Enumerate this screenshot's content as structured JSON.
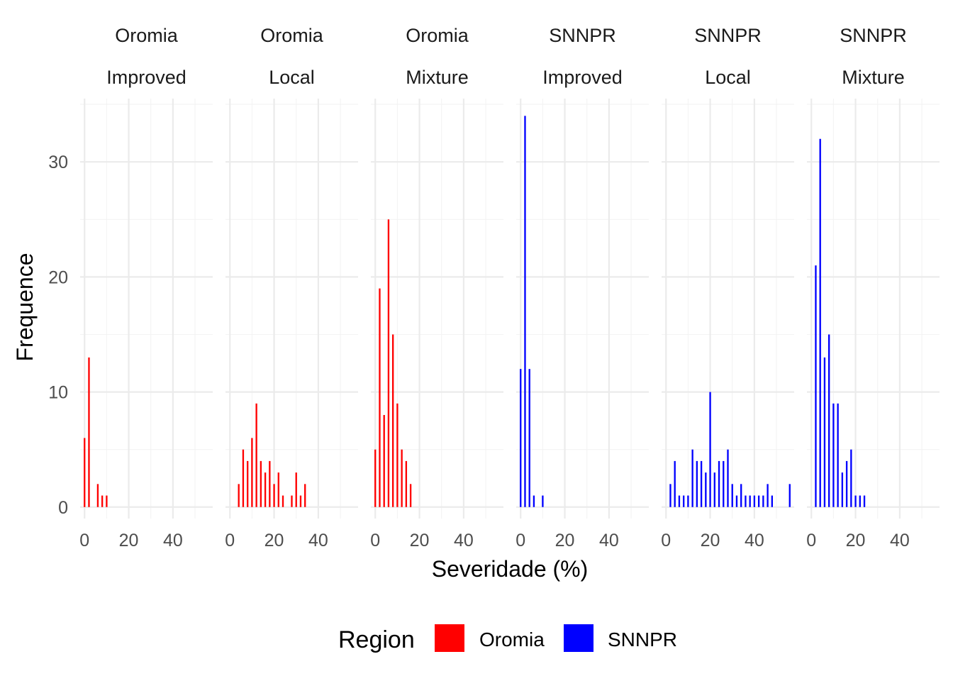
{
  "chart_data": {
    "type": "bar",
    "xlabel": "Severidade (%)",
    "ylabel": "Frequence",
    "xlim": [
      -2,
      58
    ],
    "ylim": [
      -1,
      35.5
    ],
    "x_ticks": [
      0,
      20,
      40
    ],
    "y_ticks": [
      0,
      10,
      20,
      30
    ],
    "bin_width": 1.5,
    "grid": true,
    "legend": {
      "title": "Region",
      "position": "bottom",
      "items": [
        {
          "label": "Oromia",
          "color": "#ff0000"
        },
        {
          "label": "SNNPR",
          "color": "#0000ff"
        }
      ]
    },
    "panels": [
      {
        "region": "Oromia",
        "variety": "Improved",
        "color": "#ff0000",
        "bins": [
          [
            0,
            6
          ],
          [
            2,
            13
          ],
          [
            6,
            2
          ],
          [
            8,
            1
          ],
          [
            10,
            1
          ]
        ]
      },
      {
        "region": "Oromia",
        "variety": "Local",
        "color": "#ff0000",
        "bins": [
          [
            4,
            2
          ],
          [
            6,
            5
          ],
          [
            8,
            4
          ],
          [
            10,
            6
          ],
          [
            12,
            9
          ],
          [
            14,
            4
          ],
          [
            16,
            3
          ],
          [
            18,
            4
          ],
          [
            20,
            2
          ],
          [
            22,
            3
          ],
          [
            24,
            1
          ],
          [
            28,
            1
          ],
          [
            30,
            3
          ],
          [
            32,
            1
          ],
          [
            34,
            2
          ]
        ]
      },
      {
        "region": "Oromia",
        "variety": "Mixture",
        "color": "#ff0000",
        "bins": [
          [
            0,
            5
          ],
          [
            2,
            19
          ],
          [
            4,
            8
          ],
          [
            6,
            25
          ],
          [
            8,
            15
          ],
          [
            10,
            9
          ],
          [
            12,
            5
          ],
          [
            14,
            4
          ],
          [
            16,
            2
          ]
        ]
      },
      {
        "region": "SNNPR",
        "variety": "Improved",
        "color": "#0000ff",
        "bins": [
          [
            0,
            12
          ],
          [
            2,
            34
          ],
          [
            4,
            12
          ],
          [
            6,
            1
          ],
          [
            10,
            1
          ]
        ]
      },
      {
        "region": "SNNPR",
        "variety": "Local",
        "color": "#0000ff",
        "bins": [
          [
            2,
            2
          ],
          [
            4,
            4
          ],
          [
            6,
            1
          ],
          [
            8,
            1
          ],
          [
            10,
            1
          ],
          [
            12,
            5
          ],
          [
            14,
            4
          ],
          [
            16,
            4
          ],
          [
            18,
            3
          ],
          [
            20,
            10
          ],
          [
            22,
            3
          ],
          [
            24,
            4
          ],
          [
            26,
            4
          ],
          [
            28,
            5
          ],
          [
            30,
            2
          ],
          [
            32,
            1
          ],
          [
            34,
            2
          ],
          [
            36,
            1
          ],
          [
            38,
            1
          ],
          [
            40,
            1
          ],
          [
            42,
            1
          ],
          [
            44,
            1
          ],
          [
            46,
            2
          ],
          [
            48,
            1
          ],
          [
            56,
            2
          ]
        ]
      },
      {
        "region": "SNNPR",
        "variety": "Mixture",
        "color": "#0000ff",
        "bins": [
          [
            2,
            21
          ],
          [
            4,
            32
          ],
          [
            6,
            13
          ],
          [
            8,
            15
          ],
          [
            10,
            9
          ],
          [
            12,
            9
          ],
          [
            14,
            3
          ],
          [
            16,
            4
          ],
          [
            18,
            5
          ],
          [
            20,
            1
          ],
          [
            22,
            1
          ],
          [
            24,
            1
          ]
        ]
      }
    ]
  }
}
